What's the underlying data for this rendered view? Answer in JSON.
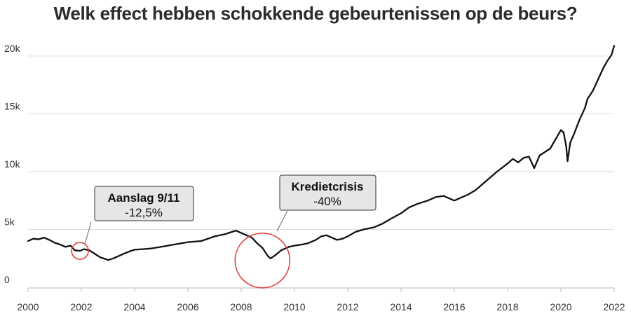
{
  "chart_data": {
    "type": "line",
    "title": "Welk effect hebben schokkende gebeurtenissen op de beurs?",
    "xlabel": "",
    "ylabel": "",
    "xlim": [
      2000,
      2022
    ],
    "ylim": [
      0,
      20000
    ],
    "x_ticks": [
      2000,
      2002,
      2004,
      2006,
      2008,
      2010,
      2012,
      2014,
      2016,
      2018,
      2020,
      2022
    ],
    "x_tick_labels": [
      "2000",
      "2002",
      "2004",
      "2006",
      "2008",
      "2010",
      "2012",
      "2014",
      "2016",
      "2018",
      "2020",
      "2022"
    ],
    "y_ticks": [
      0,
      5000,
      10000,
      15000,
      20000
    ],
    "y_tick_labels": [
      "0",
      "5k",
      "10k",
      "15k",
      "20k"
    ],
    "grid": "horizontal",
    "line_color": "#111111",
    "series": [
      {
        "x": [
          2000.0,
          2000.2,
          2000.4,
          2000.6,
          2000.8,
          2001.0,
          2001.2,
          2001.4,
          2001.6,
          2001.75,
          2001.95,
          2002.1,
          2002.3,
          2002.5,
          2002.7,
          2002.9,
          2003.0,
          2003.2,
          2003.4,
          2003.6,
          2003.8,
          2004.0,
          2004.3,
          2004.6,
          2005.0,
          2005.5,
          2006.0,
          2006.5,
          2007.0,
          2007.4,
          2007.8,
          2008.0,
          2008.2,
          2008.4,
          2008.6,
          2008.8,
          2009.0,
          2009.1,
          2009.3,
          2009.5,
          2009.8,
          2010.0,
          2010.3,
          2010.5,
          2010.8,
          2011.0,
          2011.2,
          2011.4,
          2011.6,
          2011.8,
          2012.0,
          2012.3,
          2012.6,
          2013.0,
          2013.3,
          2013.6,
          2014.0,
          2014.3,
          2014.6,
          2015.0,
          2015.3,
          2015.6,
          2016.0,
          2016.2,
          2016.5,
          2016.8,
          2017.0,
          2017.3,
          2017.6,
          2018.0,
          2018.2,
          2018.4,
          2018.6,
          2018.8,
          2019.0,
          2019.2,
          2019.4,
          2019.6,
          2019.8,
          2020.0,
          2020.1,
          2020.2,
          2020.25,
          2020.35,
          2020.5,
          2020.7,
          2020.9,
          2021.0,
          2021.2,
          2021.4,
          2021.6,
          2021.75,
          2021.9,
          2022.0
        ],
        "values": [
          4000,
          4200,
          4150,
          4300,
          4100,
          3850,
          3700,
          3500,
          3600,
          3200,
          3150,
          3300,
          3200,
          2900,
          2600,
          2450,
          2350,
          2500,
          2700,
          2900,
          3100,
          3250,
          3300,
          3350,
          3500,
          3700,
          3900,
          4000,
          4400,
          4600,
          4900,
          4700,
          4500,
          4300,
          3800,
          3400,
          2700,
          2500,
          2800,
          3200,
          3500,
          3600,
          3700,
          3800,
          4100,
          4400,
          4500,
          4300,
          4100,
          4200,
          4400,
          4800,
          5000,
          5200,
          5500,
          5900,
          6400,
          6900,
          7200,
          7500,
          7800,
          7900,
          7500,
          7700,
          8000,
          8400,
          8800,
          9400,
          10000,
          10700,
          11100,
          10800,
          11200,
          11300,
          10300,
          11400,
          11700,
          12000,
          12800,
          13600,
          13400,
          12200,
          10900,
          12500,
          13300,
          14500,
          15500,
          16300,
          17000,
          18000,
          19000,
          19600,
          20100,
          20900
        ]
      }
    ],
    "annotations": [
      {
        "title": "Aanslag 9/11",
        "value": "-12,5%",
        "x": 2001.95,
        "y": 3150
      },
      {
        "title": "Kredietcrisis",
        "value": "-40%",
        "x": 2008.85,
        "y": 2800
      }
    ]
  }
}
